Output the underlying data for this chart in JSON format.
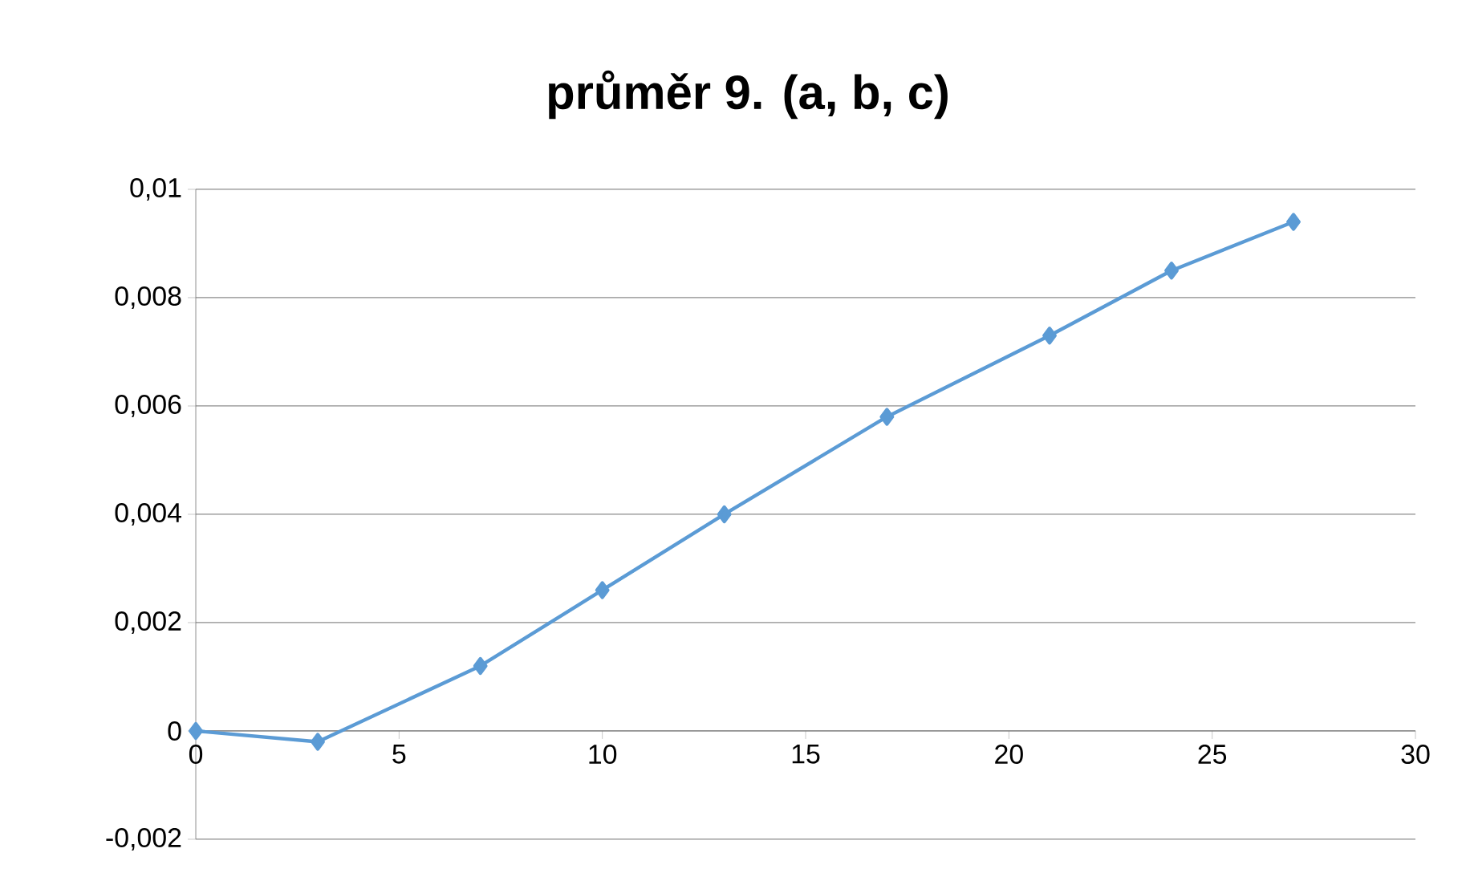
{
  "chart_data": {
    "type": "line",
    "title": "průměr 9. (a, b, c)",
    "x": [
      0,
      3,
      7,
      10,
      13,
      17,
      21,
      24,
      27
    ],
    "series": [
      {
        "color": "#5b9bd5",
        "values": [
          0,
          -0.0002,
          0.0012,
          0.0026,
          0.004,
          0.0058,
          0.0073,
          0.0085,
          0.0094
        ]
      }
    ],
    "xlim": [
      0,
      30
    ],
    "xticks": [
      0,
      5,
      10,
      15,
      20,
      25,
      30
    ],
    "ylim": [
      -0.002,
      0.01
    ],
    "yticks": [
      {
        "value": -0.002,
        "label": "-0,002"
      },
      0,
      {
        "value": 0.002,
        "label": "0,002"
      },
      {
        "value": 0.004,
        "label": "0,004"
      },
      {
        "value": 0.006,
        "label": "0,006"
      },
      {
        "value": 0.008,
        "label": "0,008"
      },
      {
        "value": 0.01,
        "label": "0,01"
      }
    ],
    "grid": "y",
    "marker": "diamond"
  }
}
